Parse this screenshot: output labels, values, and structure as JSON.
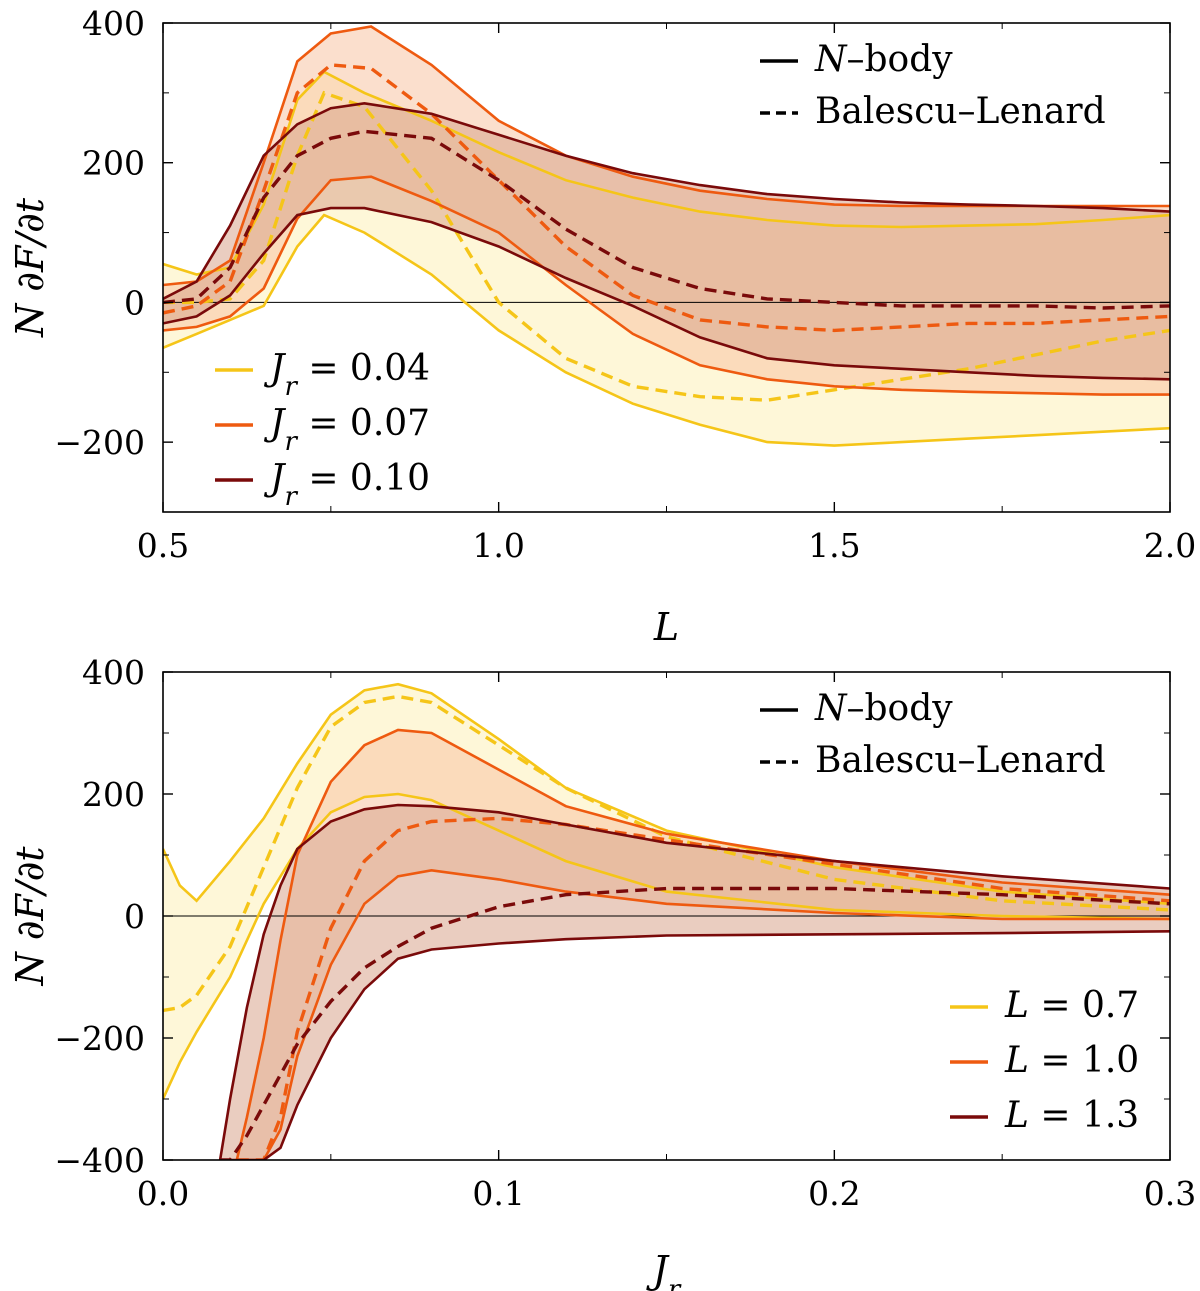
{
  "chart_data": [
    {
      "type": "line",
      "title": "",
      "xlabel": "L",
      "ylabel": "N ∂F/∂t",
      "xlim": [
        0.5,
        2.0
      ],
      "ylim": [
        -300,
        400
      ],
      "xticks": [
        "0.5",
        "1.0",
        "1.5",
        "2.0"
      ],
      "xtick_values": [
        0.5,
        1.0,
        1.5,
        2.0
      ],
      "yticks": [
        "400",
        "200",
        "0",
        "−200"
      ],
      "ytick_values": [
        400,
        200,
        0,
        -200
      ],
      "zero_line": true,
      "style_legend": {
        "position": "top-right",
        "entries": [
          {
            "label": "N–body",
            "style": "solid"
          },
          {
            "label": "Balescu–Lenard",
            "style": "dashed"
          }
        ]
      },
      "color_legend": {
        "position": "bottom-left",
        "entries": [
          "J_r = 0.04",
          "J_r = 0.07",
          "J_r = 0.10"
        ]
      },
      "series": [
        {
          "name": "J_r = 0.04",
          "color": "#f5c518",
          "fill": "#fdf0b8",
          "x": [
            0.5,
            0.55,
            0.6,
            0.65,
            0.7,
            0.74,
            0.8,
            0.9,
            1.0,
            1.1,
            1.2,
            1.3,
            1.4,
            1.5,
            1.6,
            1.7,
            1.8,
            1.9,
            2.0
          ],
          "upper": [
            55,
            40,
            50,
            140,
            290,
            330,
            300,
            260,
            215,
            175,
            150,
            130,
            118,
            110,
            108,
            110,
            112,
            118,
            125
          ],
          "lower": [
            -65,
            -45,
            -25,
            -5,
            80,
            125,
            100,
            40,
            -40,
            -100,
            -145,
            -175,
            -200,
            -205,
            -200,
            -195,
            -190,
            -185,
            -180
          ],
          "mean": [
            0,
            0,
            5,
            60,
            210,
            300,
            280,
            160,
            0,
            -80,
            -120,
            -135,
            -140,
            -125,
            -110,
            -95,
            -75,
            -55,
            -40
          ]
        },
        {
          "name": "J_r = 0.07",
          "color": "#ee5a10",
          "fill": "#f8c4a4",
          "x": [
            0.5,
            0.55,
            0.6,
            0.65,
            0.7,
            0.75,
            0.81,
            0.9,
            1.0,
            1.1,
            1.2,
            1.3,
            1.4,
            1.5,
            1.6,
            1.7,
            1.8,
            1.9,
            2.0
          ],
          "upper": [
            25,
            30,
            60,
            200,
            345,
            385,
            395,
            340,
            260,
            210,
            180,
            160,
            148,
            140,
            138,
            138,
            138,
            138,
            138
          ],
          "lower": [
            -40,
            -35,
            -20,
            20,
            120,
            175,
            180,
            145,
            100,
            25,
            -45,
            -90,
            -110,
            -120,
            -125,
            -128,
            -130,
            -132,
            -132
          ],
          "mean": [
            -15,
            -5,
            30,
            160,
            300,
            340,
            335,
            270,
            175,
            80,
            10,
            -25,
            -35,
            -40,
            -35,
            -30,
            -30,
            -25,
            -20
          ]
        },
        {
          "name": "J_r = 0.10",
          "color": "#7a0a0a",
          "fill": "#d9a48c",
          "x": [
            0.5,
            0.55,
            0.6,
            0.65,
            0.7,
            0.75,
            0.8,
            0.9,
            1.0,
            1.1,
            1.2,
            1.3,
            1.4,
            1.5,
            1.6,
            1.7,
            1.8,
            1.9,
            2.0
          ],
          "upper": [
            5,
            30,
            110,
            210,
            255,
            278,
            285,
            270,
            240,
            210,
            185,
            168,
            155,
            148,
            143,
            140,
            138,
            135,
            130
          ],
          "lower": [
            -30,
            -20,
            10,
            70,
            125,
            135,
            135,
            115,
            80,
            35,
            -5,
            -50,
            -80,
            -90,
            -95,
            -100,
            -105,
            -108,
            -110
          ],
          "mean": [
            0,
            5,
            50,
            150,
            210,
            235,
            245,
            235,
            175,
            105,
            50,
            20,
            5,
            0,
            -5,
            -5,
            -5,
            -8,
            -5
          ]
        }
      ]
    },
    {
      "type": "line",
      "title": "",
      "xlabel": "J_r",
      "ylabel": "N ∂F/∂t",
      "xlim": [
        0.0,
        0.3
      ],
      "ylim": [
        -400,
        400
      ],
      "xticks": [
        "0.0",
        "0.1",
        "0.2",
        "0.3"
      ],
      "xtick_values": [
        0.0,
        0.1,
        0.2,
        0.3
      ],
      "yticks": [
        "400",
        "200",
        "0",
        "−200",
        "−400"
      ],
      "ytick_values": [
        400,
        200,
        0,
        -200,
        -400
      ],
      "zero_line": true,
      "style_legend": {
        "position": "top-right",
        "entries": [
          {
            "label": "N–body",
            "style": "solid"
          },
          {
            "label": "Balescu–Lenard",
            "style": "dashed"
          }
        ]
      },
      "color_legend": {
        "position": "bottom-right",
        "entries": [
          "L = 0.7",
          "L = 1.0",
          "L = 1.3"
        ]
      },
      "series": [
        {
          "name": "L = 0.7",
          "color": "#f5c518",
          "fill": "#fdf0b8",
          "x": [
            0.0,
            0.005,
            0.01,
            0.02,
            0.03,
            0.04,
            0.05,
            0.06,
            0.07,
            0.08,
            0.1,
            0.12,
            0.15,
            0.2,
            0.25,
            0.3
          ],
          "upper": [
            110,
            50,
            25,
            90,
            160,
            250,
            330,
            370,
            380,
            365,
            290,
            210,
            140,
            80,
            40,
            20
          ],
          "lower": [
            -300,
            -240,
            -190,
            -100,
            20,
            110,
            170,
            195,
            200,
            190,
            140,
            90,
            40,
            10,
            0,
            -5
          ],
          "mean": [
            -155,
            -150,
            -130,
            -50,
            80,
            210,
            310,
            350,
            360,
            350,
            280,
            210,
            130,
            60,
            25,
            10
          ]
        },
        {
          "name": "L = 1.0",
          "color": "#ee5a10",
          "fill": "#f8c4a4",
          "x": [
            0.022,
            0.025,
            0.03,
            0.035,
            0.04,
            0.05,
            0.06,
            0.07,
            0.08,
            0.1,
            0.12,
            0.15,
            0.2,
            0.25,
            0.3
          ],
          "upper": [
            -400,
            -330,
            -200,
            -40,
            100,
            220,
            280,
            305,
            300,
            240,
            180,
            135,
            90,
            55,
            35
          ],
          "lower": [
            -400,
            -400,
            -400,
            -350,
            -230,
            -80,
            20,
            65,
            75,
            60,
            40,
            20,
            5,
            -5,
            -5
          ],
          "mean": [
            -400,
            -400,
            -400,
            -330,
            -190,
            -20,
            90,
            140,
            155,
            160,
            150,
            125,
            85,
            45,
            25
          ]
        },
        {
          "name": "L = 1.3",
          "color": "#7a0a0a",
          "fill": "#d9a48c",
          "x": [
            0.017,
            0.02,
            0.025,
            0.03,
            0.035,
            0.04,
            0.05,
            0.06,
            0.07,
            0.08,
            0.1,
            0.12,
            0.15,
            0.2,
            0.25,
            0.3
          ],
          "upper": [
            -400,
            -300,
            -150,
            -30,
            50,
            110,
            155,
            175,
            182,
            180,
            170,
            150,
            120,
            90,
            65,
            45
          ],
          "lower": [
            -400,
            -400,
            -400,
            -400,
            -380,
            -310,
            -200,
            -120,
            -70,
            -55,
            -45,
            -38,
            -32,
            -30,
            -28,
            -25
          ],
          "mean": [
            -400,
            -400,
            -360,
            -310,
            -260,
            -210,
            -140,
            -85,
            -50,
            -20,
            15,
            35,
            45,
            45,
            35,
            20
          ]
        }
      ]
    }
  ]
}
